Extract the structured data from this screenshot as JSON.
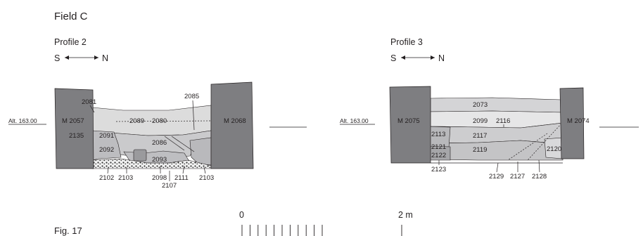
{
  "page": {
    "heading": "Field C",
    "figure_caption": "Fig. 17"
  },
  "profile2": {
    "title": "Profile 2",
    "orientation": {
      "left": "S",
      "right": "N"
    },
    "altitude": "Alt. 163.00",
    "walls": {
      "left": "M 2057",
      "right": "M 2068"
    },
    "contexts": [
      "2081",
      "2085",
      "2089",
      "2080",
      "2135",
      "2091",
      "2086",
      "2092",
      "2093",
      "2102",
      "2103",
      "2098",
      "2111",
      "2103",
      "2107"
    ]
  },
  "profile3": {
    "title": "Profile 3",
    "orientation": {
      "left": "S",
      "right": "N"
    },
    "altitude": "Alt. 163.00",
    "walls": {
      "left": "M 2075",
      "right": "M 2074"
    },
    "contexts": [
      "2073",
      "2099",
      "2116",
      "2113",
      "2117",
      "2121",
      "2119",
      "2120",
      "2122",
      "2123",
      "2129",
      "2127",
      "2128"
    ]
  },
  "scale": {
    "start": "0",
    "end": "2 m"
  },
  "colors": {
    "wall": "#7d7d80",
    "upper_fill": "#d9d9d9",
    "mid_fill": "#cfcfd1",
    "lower_fill": "#b4b4b7",
    "gravel": "#3a3a3a"
  }
}
